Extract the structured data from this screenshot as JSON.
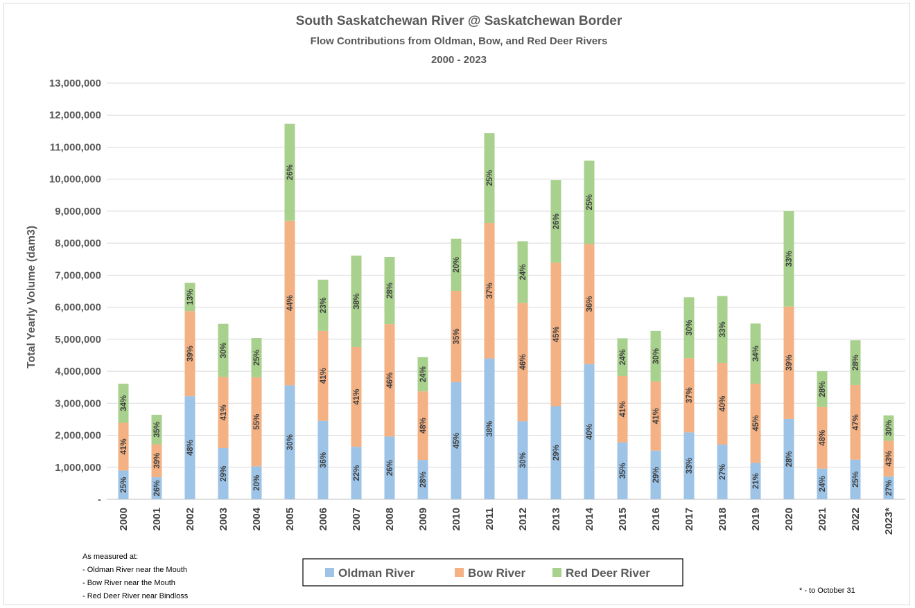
{
  "chart_data": {
    "type": "bar",
    "stacked": true,
    "title": "South Saskatchewan River @ Saskatchewan Border",
    "subtitle": "Flow Contributions from Oldman, Bow, and Red Deer Rivers",
    "subtitle2": "2000 - 2023",
    "ylabel": "Total Yearly Volume (dam3)",
    "ylim": [
      0,
      13000000
    ],
    "yticks": [
      "-",
      "1,000,000",
      "2,000,000",
      "3,000,000",
      "4,000,000",
      "5,000,000",
      "6,000,000",
      "7,000,000",
      "8,000,000",
      "9,000,000",
      "10,000,000",
      "11,000,000",
      "12,000,000",
      "13,000,000"
    ],
    "ytick_values": [
      0,
      1000000,
      2000000,
      3000000,
      4000000,
      5000000,
      6000000,
      7000000,
      8000000,
      9000000,
      10000000,
      11000000,
      12000000,
      13000000
    ],
    "grid": true,
    "legend_position": "bottom",
    "categories": [
      "2000",
      "2001",
      "2002",
      "2003",
      "2004",
      "2005",
      "2006",
      "2007",
      "2008",
      "2009",
      "2010",
      "2011",
      "2012",
      "2013",
      "2014",
      "2015",
      "2016",
      "2017",
      "2018",
      "2019",
      "2020",
      "2021",
      "2022",
      "2023*"
    ],
    "series": [
      {
        "name": "Oldman River",
        "color": "#9dc3e6",
        "values": [
          900000,
          690000,
          3220000,
          1600000,
          1030000,
          3560000,
          2450000,
          1640000,
          1960000,
          1230000,
          3660000,
          4400000,
          2440000,
          2910000,
          4220000,
          1780000,
          1520000,
          2090000,
          1710000,
          1140000,
          2510000,
          960000,
          1240000,
          710000
        ],
        "labels": [
          "25%",
          "26%",
          "48%",
          "29%",
          "20%",
          "30%",
          "36%",
          "22%",
          "26%",
          "28%",
          "45%",
          "38%",
          "30%",
          "29%",
          "40%",
          "35%",
          "29%",
          "33%",
          "27%",
          "21%",
          "28%",
          "24%",
          "25%",
          "27%"
        ]
      },
      {
        "name": "Bow River",
        "color": "#f4b183",
        "values": [
          1490000,
          1030000,
          2660000,
          2220000,
          2780000,
          5140000,
          2810000,
          3120000,
          3510000,
          2140000,
          2850000,
          4230000,
          3690000,
          4480000,
          3760000,
          2070000,
          2160000,
          2320000,
          2550000,
          2470000,
          3510000,
          1920000,
          2330000,
          1120000
        ],
        "labels": [
          "41%",
          "39%",
          "39%",
          "41%",
          "55%",
          "44%",
          "41%",
          "41%",
          "46%",
          "48%",
          "35%",
          "37%",
          "46%",
          "45%",
          "36%",
          "41%",
          "41%",
          "37%",
          "40%",
          "45%",
          "39%",
          "48%",
          "47%",
          "43%"
        ]
      },
      {
        "name": "Red Deer River",
        "color": "#a9d18e",
        "values": [
          1220000,
          920000,
          880000,
          1660000,
          1230000,
          3030000,
          1600000,
          2850000,
          2100000,
          1070000,
          1630000,
          2810000,
          1930000,
          2580000,
          2600000,
          1180000,
          1580000,
          1900000,
          2090000,
          1880000,
          2980000,
          1120000,
          1400000,
          790000
        ],
        "labels": [
          "34%",
          "35%",
          "13%",
          "30%",
          "25%",
          "26%",
          "23%",
          "38%",
          "28%",
          "24%",
          "20%",
          "25%",
          "24%",
          "26%",
          "25%",
          "24%",
          "30%",
          "30%",
          "33%",
          "34%",
          "33%",
          "28%",
          "28%",
          "30%"
        ]
      }
    ]
  },
  "notes": {
    "heading": "As measured at:",
    "lines": [
      " - Oldman River near the Mouth",
      " - Bow River near the Mouth",
      " - Red Deer River near Bindloss"
    ],
    "footnote": "* - to October 31"
  },
  "colors": {
    "axis_text": "#595959",
    "grid": "#d9d9d9",
    "label_text": "#404040"
  }
}
